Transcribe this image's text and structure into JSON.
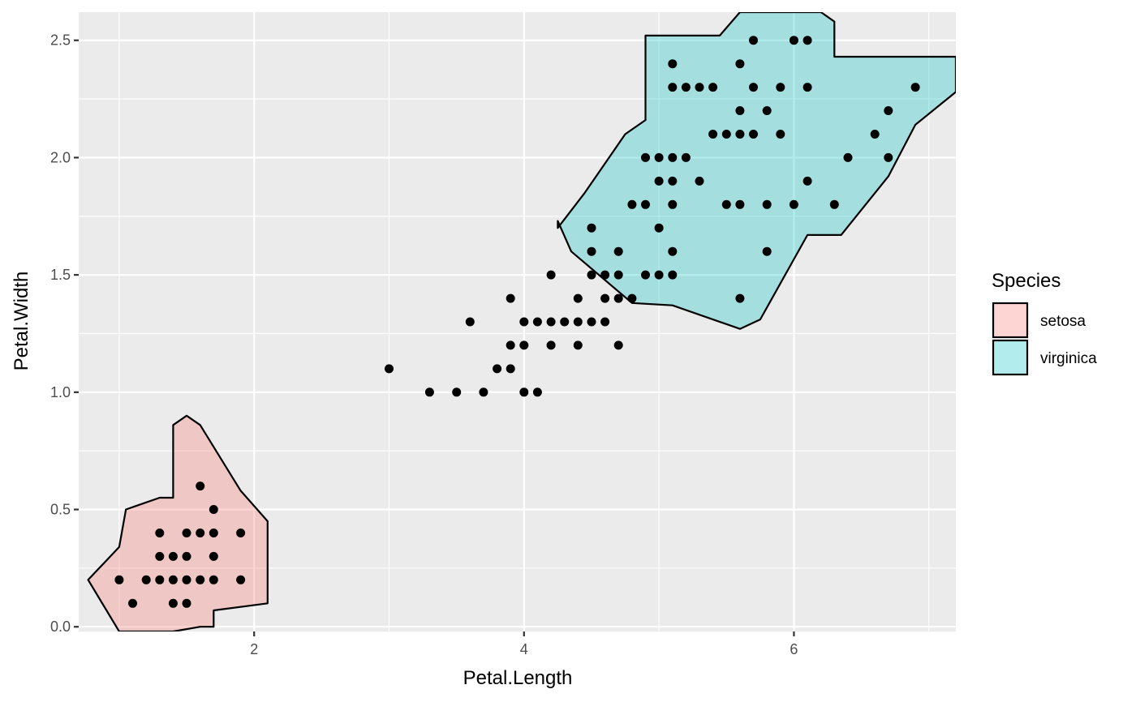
{
  "chart_data": {
    "type": "scatter",
    "xlabel": "Petal.Length",
    "ylabel": "Petal.Width",
    "xlim": [
      0.7,
      7.2
    ],
    "ylim": [
      -0.02,
      2.62
    ],
    "x_ticks": [
      2,
      4,
      6
    ],
    "x_tick_labels": [
      "2",
      "4",
      "6"
    ],
    "y_ticks": [
      0.0,
      0.5,
      1.0,
      1.5,
      2.0,
      2.5
    ],
    "y_tick_labels": [
      "0.0",
      "0.5",
      "1.0",
      "1.5",
      "2.0",
      "2.5"
    ],
    "grid": true,
    "legend": {
      "title": "Species",
      "position": "right",
      "entries": [
        {
          "label": "setosa",
          "fill": "#F8766D"
        },
        {
          "label": "virginica",
          "fill": "#00BFC4"
        }
      ]
    },
    "colors": {
      "panel_background": "#EBEBEB",
      "grid": "#FFFFFF",
      "points": "#000000",
      "setosa": "#F8766D",
      "virginica": "#00BFC4"
    },
    "hulls": [
      {
        "species": "setosa",
        "polygon": [
          [
            1.0,
            0.34
          ],
          [
            1.05,
            0.5
          ],
          [
            1.15,
            0.52
          ],
          [
            1.3,
            0.55
          ],
          [
            1.4,
            0.55
          ],
          [
            1.4,
            0.86
          ],
          [
            1.5,
            0.9
          ],
          [
            1.6,
            0.86
          ],
          [
            1.9,
            0.58
          ],
          [
            2.1,
            0.45
          ],
          [
            2.1,
            0.1
          ],
          [
            1.7,
            0.07
          ],
          [
            1.7,
            0.0
          ],
          [
            1.6,
            0.0
          ],
          [
            1.4,
            -0.02
          ],
          [
            1.2,
            -0.02
          ],
          [
            1.0,
            -0.02
          ],
          [
            0.77,
            0.2
          ]
        ]
      },
      {
        "species": "virginica",
        "polygon": [
          [
            4.25,
            1.73
          ],
          [
            4.35,
            1.6
          ],
          [
            4.8,
            1.38
          ],
          [
            5.1,
            1.37
          ],
          [
            5.6,
            1.27
          ],
          [
            5.75,
            1.31
          ],
          [
            6.1,
            1.67
          ],
          [
            6.35,
            1.67
          ],
          [
            6.7,
            1.92
          ],
          [
            6.9,
            2.14
          ],
          [
            7.2,
            2.28
          ],
          [
            7.2,
            2.43
          ],
          [
            6.3,
            2.43
          ],
          [
            6.3,
            2.58
          ],
          [
            6.2,
            2.62
          ],
          [
            5.6,
            2.62
          ],
          [
            5.45,
            2.52
          ],
          [
            4.9,
            2.52
          ],
          [
            4.9,
            2.16
          ],
          [
            4.75,
            2.1
          ],
          [
            4.45,
            1.85
          ],
          [
            4.25,
            1.7
          ]
        ]
      }
    ],
    "points": [
      [
        1.0,
        0.2
      ],
      [
        1.1,
        0.1
      ],
      [
        1.2,
        0.2
      ],
      [
        1.3,
        0.2
      ],
      [
        1.3,
        0.3
      ],
      [
        1.3,
        0.4
      ],
      [
        1.4,
        0.1
      ],
      [
        1.4,
        0.2
      ],
      [
        1.4,
        0.3
      ],
      [
        1.5,
        0.1
      ],
      [
        1.5,
        0.2
      ],
      [
        1.5,
        0.3
      ],
      [
        1.5,
        0.4
      ],
      [
        1.6,
        0.2
      ],
      [
        1.6,
        0.4
      ],
      [
        1.6,
        0.6
      ],
      [
        1.7,
        0.2
      ],
      [
        1.7,
        0.3
      ],
      [
        1.7,
        0.4
      ],
      [
        1.7,
        0.5
      ],
      [
        1.9,
        0.2
      ],
      [
        1.9,
        0.4
      ],
      [
        3.0,
        1.1
      ],
      [
        3.3,
        1.0
      ],
      [
        3.5,
        1.0
      ],
      [
        3.6,
        1.3
      ],
      [
        3.7,
        1.0
      ],
      [
        3.8,
        1.1
      ],
      [
        3.9,
        1.1
      ],
      [
        3.9,
        1.2
      ],
      [
        3.9,
        1.4
      ],
      [
        4.0,
        1.0
      ],
      [
        4.0,
        1.2
      ],
      [
        4.0,
        1.3
      ],
      [
        4.1,
        1.0
      ],
      [
        4.1,
        1.3
      ],
      [
        4.2,
        1.2
      ],
      [
        4.2,
        1.3
      ],
      [
        4.2,
        1.5
      ],
      [
        4.3,
        1.3
      ],
      [
        4.4,
        1.2
      ],
      [
        4.4,
        1.3
      ],
      [
        4.4,
        1.4
      ],
      [
        4.5,
        1.3
      ],
      [
        4.5,
        1.5
      ],
      [
        4.5,
        1.6
      ],
      [
        4.5,
        1.7
      ],
      [
        4.6,
        1.3
      ],
      [
        4.6,
        1.4
      ],
      [
        4.6,
        1.5
      ],
      [
        4.7,
        1.2
      ],
      [
        4.7,
        1.4
      ],
      [
        4.7,
        1.5
      ],
      [
        4.7,
        1.6
      ],
      [
        4.8,
        1.4
      ],
      [
        4.8,
        1.8
      ],
      [
        4.9,
        1.5
      ],
      [
        4.9,
        1.8
      ],
      [
        4.9,
        2.0
      ],
      [
        5.0,
        1.5
      ],
      [
        5.0,
        1.7
      ],
      [
        5.0,
        1.9
      ],
      [
        5.0,
        2.0
      ],
      [
        5.1,
        1.5
      ],
      [
        5.1,
        1.6
      ],
      [
        5.1,
        1.8
      ],
      [
        5.1,
        1.9
      ],
      [
        5.1,
        2.0
      ],
      [
        5.1,
        2.3
      ],
      [
        5.1,
        2.4
      ],
      [
        5.2,
        2.0
      ],
      [
        5.2,
        2.3
      ],
      [
        5.3,
        1.9
      ],
      [
        5.3,
        2.3
      ],
      [
        5.4,
        2.1
      ],
      [
        5.4,
        2.3
      ],
      [
        5.5,
        1.8
      ],
      [
        5.5,
        2.1
      ],
      [
        5.6,
        1.4
      ],
      [
        5.6,
        1.8
      ],
      [
        5.6,
        2.1
      ],
      [
        5.6,
        2.2
      ],
      [
        5.6,
        2.4
      ],
      [
        5.7,
        2.1
      ],
      [
        5.7,
        2.3
      ],
      [
        5.7,
        2.5
      ],
      [
        5.8,
        1.6
      ],
      [
        5.8,
        1.8
      ],
      [
        5.8,
        2.2
      ],
      [
        5.9,
        2.1
      ],
      [
        5.9,
        2.3
      ],
      [
        6.0,
        1.8
      ],
      [
        6.0,
        2.5
      ],
      [
        6.1,
        1.9
      ],
      [
        6.1,
        2.3
      ],
      [
        6.1,
        2.5
      ],
      [
        6.3,
        1.8
      ],
      [
        6.4,
        2.0
      ],
      [
        6.6,
        2.1
      ],
      [
        6.7,
        2.0
      ],
      [
        6.7,
        2.2
      ],
      [
        6.9,
        2.3
      ]
    ]
  }
}
